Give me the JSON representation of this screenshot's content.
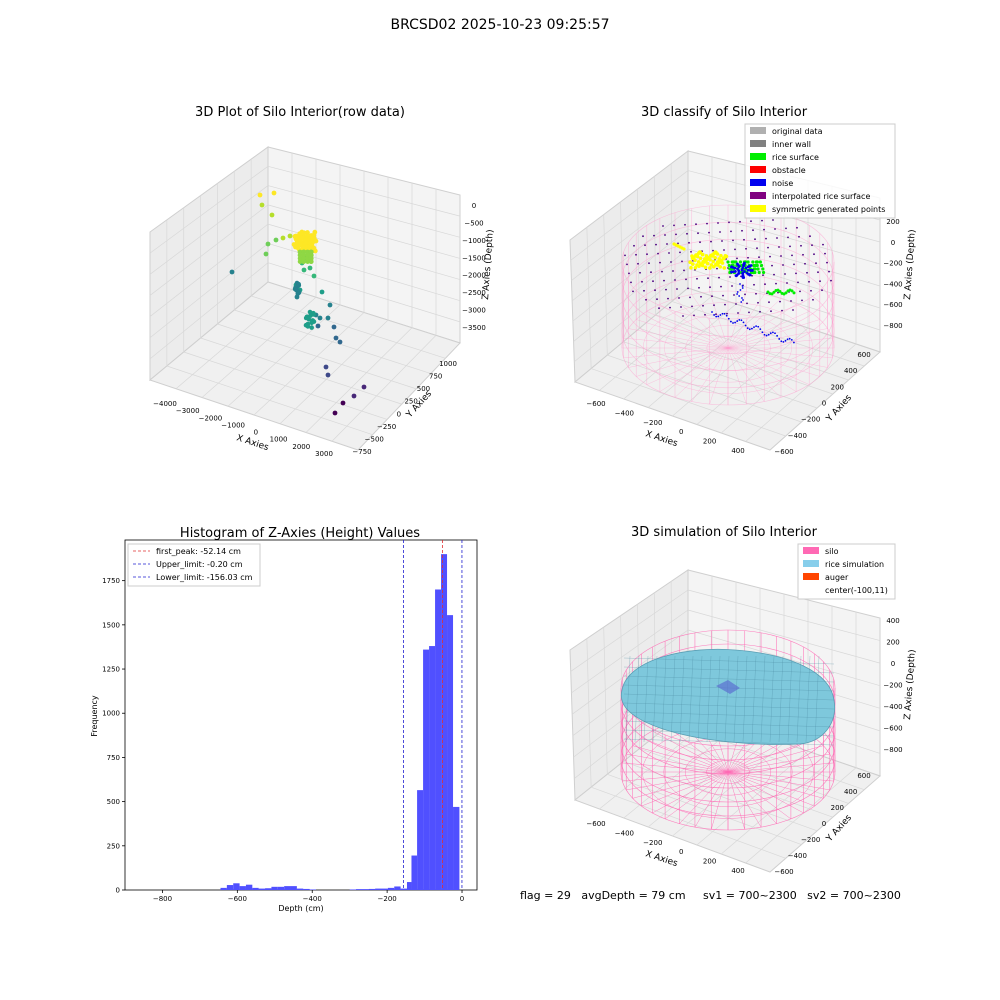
{
  "suptitle": "BRCSD02 2025-10-23 09:25:57",
  "footer": "flag = 29   avgDepth = 79 cm     sv1 = 700~2300   sv2 = 700~2300",
  "colors": {
    "hist_bar": "#5050ff",
    "first_peak": "#e03030",
    "limits": "#2020d0",
    "silo_mesh": "#ff88cc",
    "rice_fill": "#7ec8dc",
    "pane": "#f2f2f2",
    "grid": "#d8d8d8"
  },
  "chart_data": [
    {
      "type": "scatter",
      "title": "3D Plot of Silo Interior(row data)",
      "xlabel": "X Axies",
      "ylabel": "Y Axies",
      "zlabel": "Z Axies (Depth)",
      "x_ticks": [
        "−4000",
        "−3000",
        "−2000",
        "−1000",
        "0",
        "1000",
        "2000",
        "3000"
      ],
      "y_ticks": [
        "−750",
        "−500",
        "−250",
        "0",
        "250",
        "500",
        "750",
        "1000"
      ],
      "z_ticks": [
        "0",
        "−500",
        "−1000",
        "−1500",
        "−2000",
        "−2500",
        "−3000",
        "−3500"
      ],
      "colormap": "viridis"
    },
    {
      "type": "scatter",
      "title": "3D classify of Silo Interior",
      "xlabel": "X Axies",
      "ylabel": "Y Axies",
      "zlabel": "Z Axies (Depth)",
      "x_ticks": [
        "−600",
        "−400",
        "−200",
        "0",
        "200",
        "400"
      ],
      "y_ticks": [
        "−600",
        "−400",
        "−200",
        "0",
        "200",
        "400",
        "600"
      ],
      "z_ticks": [
        "200",
        "0",
        "−200",
        "−400",
        "−600",
        "−800"
      ],
      "legend_position": "top-right",
      "legend": [
        {
          "label": "original data",
          "color": "#b0b0b0"
        },
        {
          "label": "inner wall",
          "color": "#808080"
        },
        {
          "label": "rice surface",
          "color": "#00ee00"
        },
        {
          "label": "obstacle",
          "color": "#ff0000"
        },
        {
          "label": "noise",
          "color": "#0000ee"
        },
        {
          "label": "interpolated rice surface",
          "color": "#800080"
        },
        {
          "label": "symmetric generated points",
          "color": "#ffff00"
        }
      ]
    },
    {
      "type": "bar",
      "title": "Histogram of Z-Axies (Height) Values",
      "xlabel": "Depth (cm)",
      "ylabel": "Frequency",
      "xlim": [
        -900,
        40
      ],
      "ylim": [
        0,
        1980
      ],
      "x_ticks": [
        -800,
        -600,
        -400,
        -200,
        0
      ],
      "x_tick_labels": [
        "−800",
        "−600",
        "−400",
        "−200",
        "0"
      ],
      "y_ticks": [
        0,
        250,
        500,
        750,
        1000,
        1250,
        1500,
        1750
      ],
      "bin_width": 17,
      "bins": [
        {
          "x0": -645,
          "value": 12
        },
        {
          "x0": -628,
          "value": 28
        },
        {
          "x0": -611,
          "value": 38
        },
        {
          "x0": -594,
          "value": 22
        },
        {
          "x0": -577,
          "value": 30
        },
        {
          "x0": -560,
          "value": 12
        },
        {
          "x0": -543,
          "value": 8
        },
        {
          "x0": -526,
          "value": 10
        },
        {
          "x0": -509,
          "value": 18
        },
        {
          "x0": -492,
          "value": 18
        },
        {
          "x0": -475,
          "value": 22
        },
        {
          "x0": -458,
          "value": 22
        },
        {
          "x0": -441,
          "value": 8
        },
        {
          "x0": -424,
          "value": 6
        },
        {
          "x0": -407,
          "value": 3
        },
        {
          "x0": -300,
          "value": 3
        },
        {
          "x0": -283,
          "value": 5
        },
        {
          "x0": -266,
          "value": 5
        },
        {
          "x0": -249,
          "value": 6
        },
        {
          "x0": -232,
          "value": 8
        },
        {
          "x0": -215,
          "value": 8
        },
        {
          "x0": -198,
          "value": 12
        },
        {
          "x0": -181,
          "value": 20
        },
        {
          "x0": -164,
          "value": 8
        },
        {
          "x0": -147,
          "value": 45
        },
        {
          "x0": -135,
          "value": 195
        },
        {
          "x0": -120,
          "value": 565
        },
        {
          "x0": -104,
          "value": 1360
        },
        {
          "x0": -88,
          "value": 1380
        },
        {
          "x0": -72,
          "value": 1700
        },
        {
          "x0": -56,
          "value": 1900
        },
        {
          "x0": -40,
          "value": 1555
        },
        {
          "x0": -24,
          "value": 470
        }
      ],
      "vlines": [
        {
          "label": "first_peak: -52.14 cm",
          "x": -52.14,
          "color": "#e03030"
        },
        {
          "label": "Upper_limit: -0.20 cm",
          "x": -0.2,
          "color": "#2020d0"
        },
        {
          "label": "Lower_limit: -156.03 cm",
          "x": -156.03,
          "color": "#2020d0"
        }
      ],
      "legend_position": "top-left"
    },
    {
      "type": "surface",
      "title": "3D simulation of Silo Interior",
      "xlabel": "X Axies",
      "ylabel": "Y Axies",
      "zlabel": "Z Axies (Depth)",
      "x_ticks": [
        "−600",
        "−400",
        "−200",
        "0",
        "200",
        "400"
      ],
      "y_ticks": [
        "−600",
        "−400",
        "−200",
        "0",
        "200",
        "400",
        "600"
      ],
      "z_ticks": [
        "400",
        "200",
        "0",
        "−200",
        "−400",
        "−600",
        "−800"
      ],
      "legend_position": "top-right",
      "legend": [
        {
          "label": "silo",
          "color": "#ff69b4"
        },
        {
          "label": "rice simulation",
          "color": "#87ceeb"
        },
        {
          "label": "auger",
          "color": "#ff4500"
        },
        {
          "label": "center(-100,11)",
          "color": ""
        }
      ]
    }
  ]
}
